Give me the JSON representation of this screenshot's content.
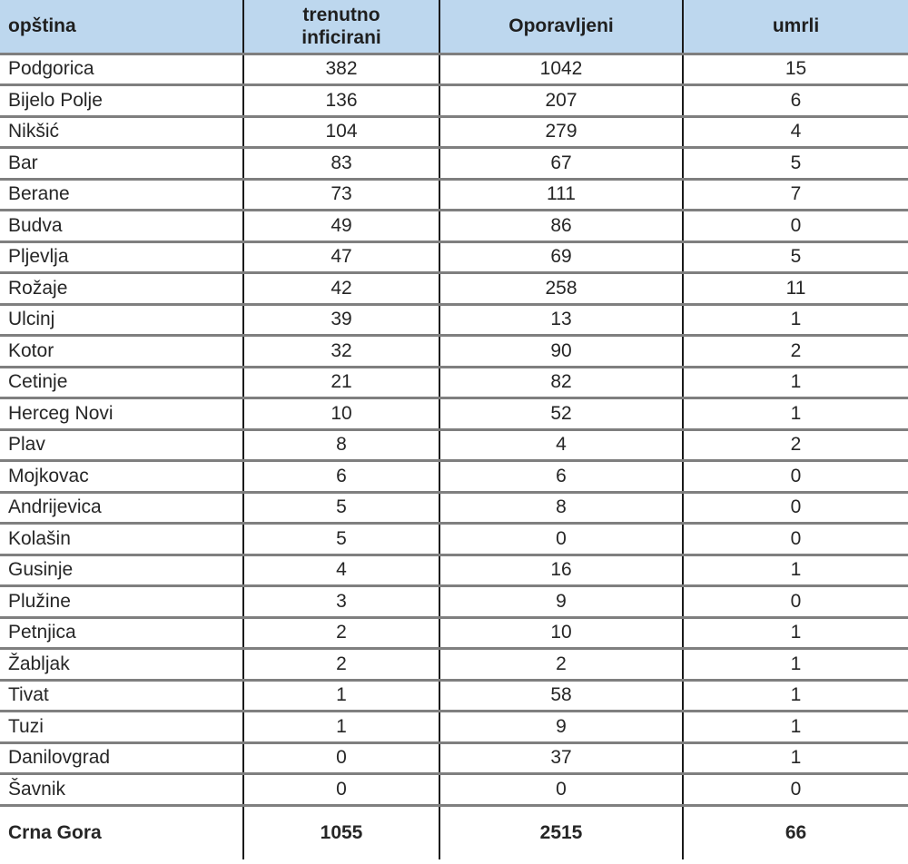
{
  "colors": {
    "header-bg": "#bdd7ee",
    "header-text": "#1f1f1f",
    "body-text": "#262626",
    "grid-horizontal": "#7f7f7f",
    "grid-vertical": "#1a1a1a",
    "page-bg": "#ffffff"
  },
  "chart_data": {
    "type": "table",
    "columns": [
      "opština",
      "trenutno inficirani",
      "Oporavljeni",
      "umrli"
    ],
    "rows": [
      [
        "Podgorica",
        382,
        1042,
        15
      ],
      [
        "Bijelo Polje",
        136,
        207,
        6
      ],
      [
        "Nikšić",
        104,
        279,
        4
      ],
      [
        "Bar",
        83,
        67,
        5
      ],
      [
        "Berane",
        73,
        111,
        7
      ],
      [
        "Budva",
        49,
        86,
        0
      ],
      [
        "Pljevlja",
        47,
        69,
        5
      ],
      [
        "Rožaje",
        42,
        258,
        11
      ],
      [
        "Ulcinj",
        39,
        13,
        1
      ],
      [
        "Kotor",
        32,
        90,
        2
      ],
      [
        "Cetinje",
        21,
        82,
        1
      ],
      [
        "Herceg Novi",
        10,
        52,
        1
      ],
      [
        "Plav",
        8,
        4,
        2
      ],
      [
        "Mojkovac",
        6,
        6,
        0
      ],
      [
        "Andrijevica",
        5,
        8,
        0
      ],
      [
        "Kolašin",
        5,
        0,
        0
      ],
      [
        "Gusinje",
        4,
        16,
        1
      ],
      [
        "Plužine",
        3,
        9,
        0
      ],
      [
        "Petnjica",
        2,
        10,
        1
      ],
      [
        "Žabljak",
        2,
        2,
        1
      ],
      [
        "Tivat",
        1,
        58,
        1
      ],
      [
        "Tuzi",
        1,
        9,
        1
      ],
      [
        "Danilovgrad",
        0,
        37,
        1
      ],
      [
        "Šavnik",
        0,
        0,
        0
      ]
    ],
    "total_row": [
      "Crna Gora",
      1055,
      2515,
      66
    ]
  }
}
